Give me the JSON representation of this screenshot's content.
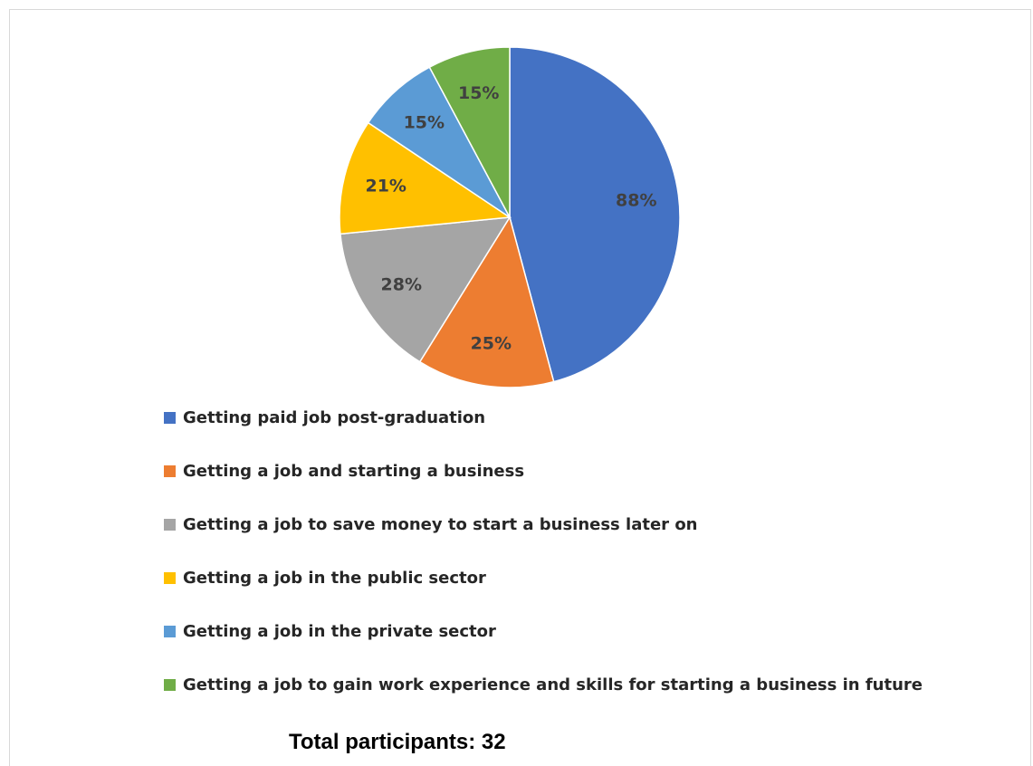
{
  "chart_data": {
    "type": "pie",
    "title": "",
    "slices": [
      {
        "label": "Getting paid job post-graduation",
        "value": 88,
        "display": "88%",
        "color": "#4472C4"
      },
      {
        "label": "Getting a job and starting a business",
        "value": 25,
        "display": "25%",
        "color": "#ED7D31"
      },
      {
        "label": "Getting a job to save money to start a business later on",
        "value": 28,
        "display": "28%",
        "color": "#A5A5A5"
      },
      {
        "label": "Getting a job in the public sector",
        "value": 21,
        "display": "21%",
        "color": "#FFC000"
      },
      {
        "label": "Getting a job in the private sector",
        "value": 15,
        "display": "15%",
        "color": "#5B9BD5"
      },
      {
        "label": "Getting a job to gain work experience and skills for starting a business in future",
        "value": 15,
        "display": "15%",
        "color": "#70AD47"
      }
    ],
    "start_angle_deg": 0,
    "direction": "clockwise",
    "legend_position": "bottom-left"
  },
  "footnote": "Total participants: 32"
}
